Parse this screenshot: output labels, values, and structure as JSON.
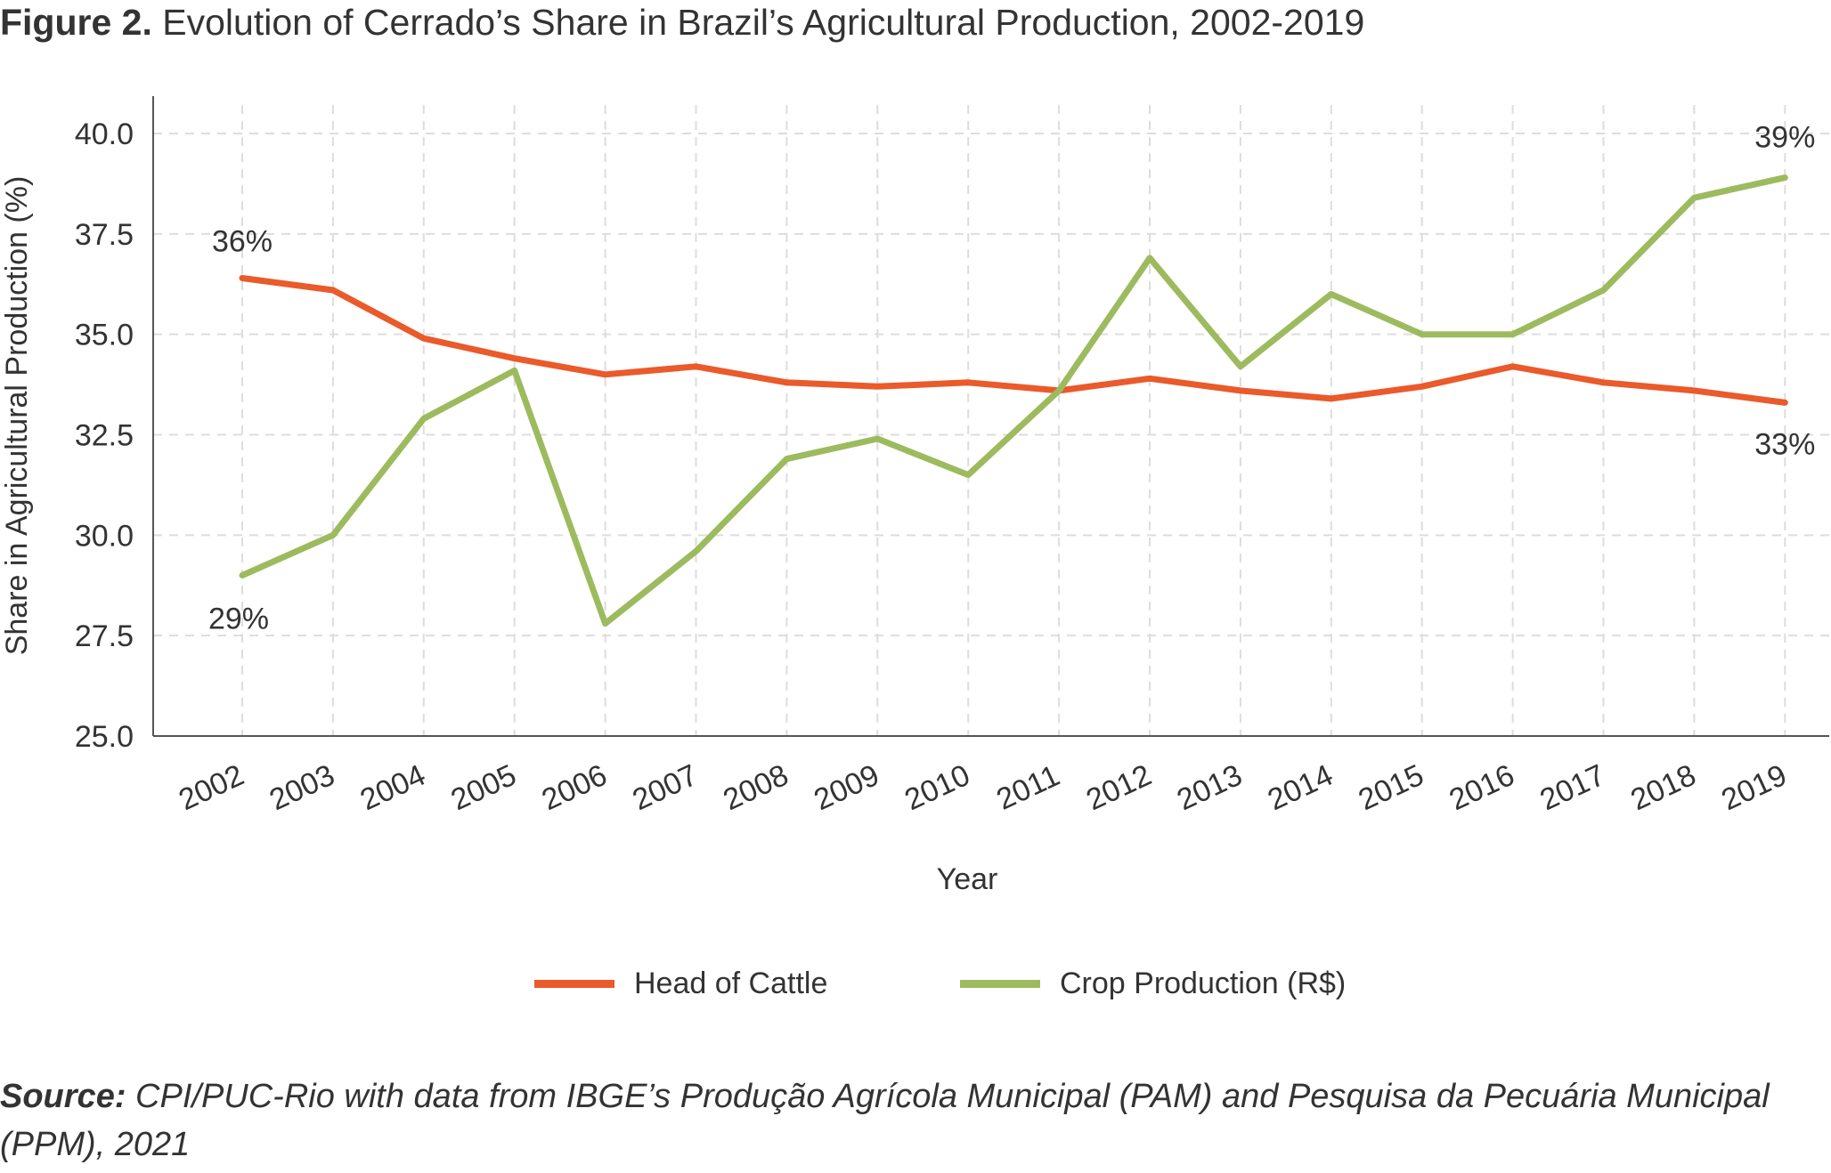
{
  "title": {
    "lead": "Figure 2.",
    "text": "Evolution of Cerrado’s Share in Brazil’s Agricultural Production, 2002-2019"
  },
  "source": {
    "lead": "Source:",
    "text": "CPI/PUC-Rio with data from IBGE’s Produção Agrícola Municipal (PAM) and Pesquisa da Pecuária Municipal (PPM), 2021"
  },
  "chart_data": {
    "type": "line",
    "title": "Evolution of Cerrado’s Share in Brazil’s Agricultural Production, 2002-2019",
    "xlabel": "Year",
    "ylabel": "Share in Agricultural Production (%)",
    "ylim": [
      25.0,
      40.0
    ],
    "yticks": [
      "25.0",
      "27.5",
      "30.0",
      "32.5",
      "35.0",
      "37.5",
      "40.0"
    ],
    "grid": true,
    "legend_position": "bottom",
    "categories": [
      "2002",
      "2003",
      "2004",
      "2005",
      "2006",
      "2007",
      "2008",
      "2009",
      "2010",
      "2011",
      "2012",
      "2013",
      "2014",
      "2015",
      "2016",
      "2017",
      "2018",
      "2019"
    ],
    "series": [
      {
        "name": "Head of Cattle",
        "color": "#EA5A2A",
        "values": [
          36.4,
          36.1,
          34.9,
          34.4,
          34.0,
          34.2,
          33.8,
          33.7,
          33.8,
          33.6,
          33.9,
          33.6,
          33.4,
          33.7,
          34.2,
          33.8,
          33.6,
          33.3
        ]
      },
      {
        "name": "Crop Production (R$)",
        "color": "#9DBB5E",
        "values": [
          29.0,
          30.0,
          32.9,
          34.1,
          27.8,
          29.6,
          31.9,
          32.4,
          31.5,
          33.6,
          36.9,
          34.2,
          36.0,
          35.0,
          35.0,
          36.1,
          38.4,
          38.9
        ]
      }
    ],
    "annotations": [
      {
        "series": 0,
        "index": 0,
        "text": "36%"
      },
      {
        "series": 1,
        "index": 0,
        "text": "29%"
      },
      {
        "series": 1,
        "index": 17,
        "text": "39%"
      },
      {
        "series": 0,
        "index": 17,
        "text": "33%"
      }
    ]
  }
}
